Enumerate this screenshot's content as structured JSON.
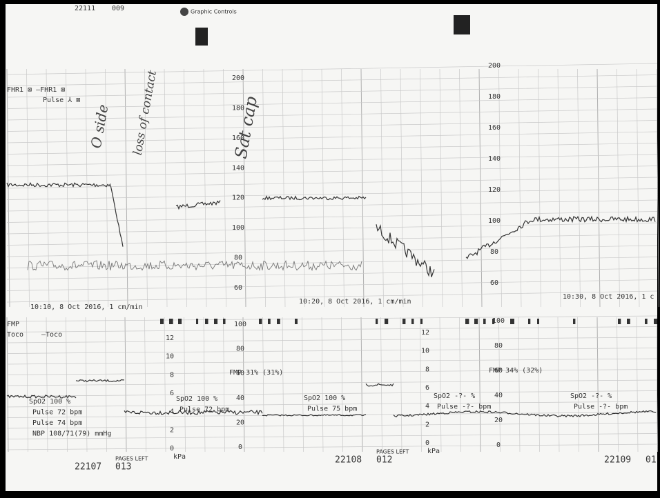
{
  "header": {
    "chart_id": "22111",
    "page": "009",
    "brand": "Graphic Controls"
  },
  "legend": {
    "fhr": "FHR1 ⊠ —FHR1 ⊠",
    "pulse": "Pulse ⅄ ⊠",
    "fmp": "FMP",
    "toco": "Toco",
    "toco_line": "—Toco"
  },
  "handwritten": [
    "O side",
    "loss of contact",
    "Sat cap"
  ],
  "upper_scale": [
    200,
    180,
    160,
    140,
    120,
    100,
    80,
    60
  ],
  "timestamps": [
    "10:10, 8 Oct 2016, 1 cm/min",
    "10:20, 8 Oct 2016, 1 cm/min",
    "10:30, 8 Oct 2016, 1 c"
  ],
  "kpa_scale": [
    12,
    10,
    8,
    6,
    4,
    2,
    0
  ],
  "kpa_unit": "kPa",
  "pct_scale": [
    100,
    80,
    60,
    40,
    20,
    0
  ],
  "fmp_notes": [
    "FMP 31% (31%)",
    "FMP 34% (32%)"
  ],
  "vitals": [
    [
      "SpO2 100 %",
      "Pulse 72 bpm",
      "Pulse 74 bpm",
      "NBP 108/71(79) mmHg"
    ],
    [
      "SpO2 100 %",
      "Pulse 72 bpm"
    ],
    [
      "SpO2 100 %",
      "Pulse 75 bpm"
    ],
    [
      "SpO2 -?- %",
      "Pulse -?- bpm"
    ],
    [
      "SpO2 -?- %",
      "Pulse -?- bpm"
    ]
  ],
  "footer": [
    {
      "chart_id": "22107",
      "pages_left_label": "PAGES LEFT",
      "pages_left": "013"
    },
    {
      "chart_id": "22108",
      "pages_left_label": "PAGES LEFT",
      "pages_left": "012"
    },
    {
      "chart_id": "22109",
      "pages_left": "01"
    }
  ]
}
